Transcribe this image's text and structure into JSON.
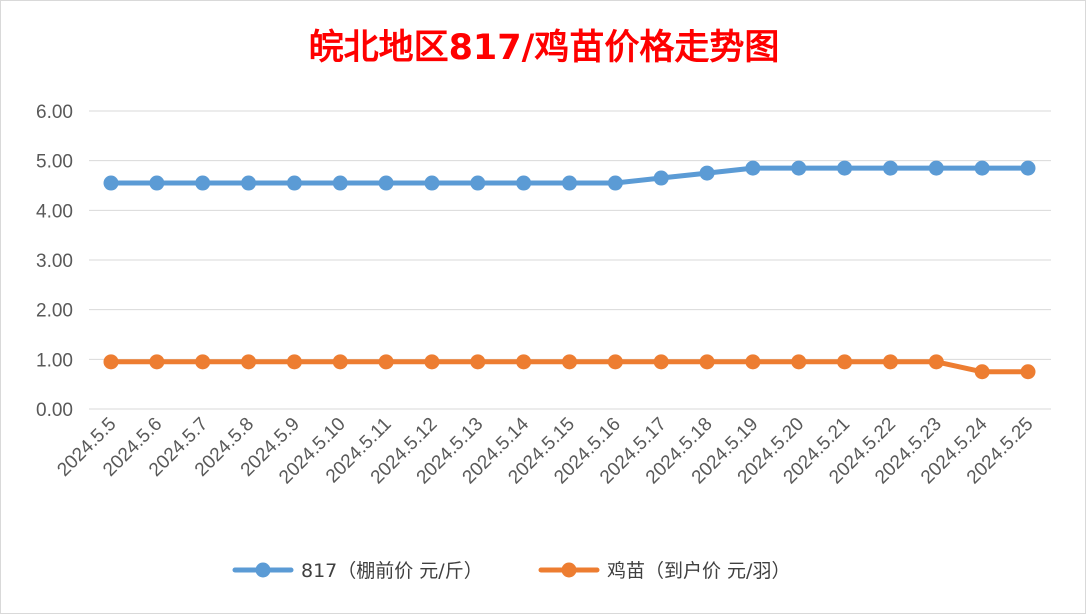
{
  "chart_data": {
    "type": "line",
    "title": "皖北地区817/鸡苗价格走势图",
    "xlabel": "",
    "ylabel": "",
    "ylim": [
      0,
      6
    ],
    "yticks": [
      "0.00",
      "1.00",
      "2.00",
      "3.00",
      "4.00",
      "5.00",
      "6.00"
    ],
    "grid": true,
    "legend_position": "bottom",
    "categories": [
      "2024.5.5",
      "2024.5.6",
      "2024.5.7",
      "2024.5.8",
      "2024.5.9",
      "2024.5.10",
      "2024.5.11",
      "2024.5.12",
      "2024.5.13",
      "2024.5.14",
      "2024.5.15",
      "2024.5.16",
      "2024.5.17",
      "2024.5.18",
      "2024.5.19",
      "2024.5.20",
      "2024.5.21",
      "2024.5.22",
      "2024.5.23",
      "2024.5.24",
      "2024.5.25"
    ],
    "series": [
      {
        "name": "817（棚前价 元/斤）",
        "color": "#5b9bd5",
        "values": [
          4.55,
          4.55,
          4.55,
          4.55,
          4.55,
          4.55,
          4.55,
          4.55,
          4.55,
          4.55,
          4.55,
          4.55,
          4.65,
          4.75,
          4.85,
          4.85,
          4.85,
          4.85,
          4.85,
          4.85,
          4.85
        ]
      },
      {
        "name": "鸡苗（到户价 元/羽）",
        "color": "#ed7d31",
        "values": [
          0.95,
          0.95,
          0.95,
          0.95,
          0.95,
          0.95,
          0.95,
          0.95,
          0.95,
          0.95,
          0.95,
          0.95,
          0.95,
          0.95,
          0.95,
          0.95,
          0.95,
          0.95,
          0.95,
          0.75,
          0.75
        ]
      }
    ]
  }
}
